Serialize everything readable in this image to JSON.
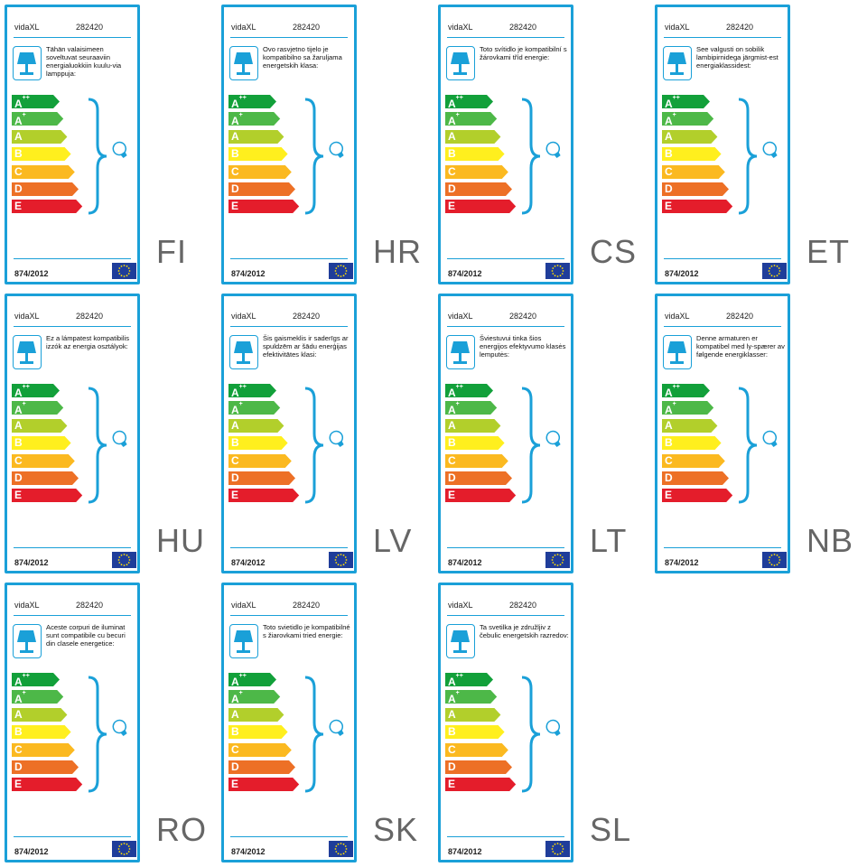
{
  "brand": "vidaXL",
  "code": "282420",
  "regulation": "874/2012",
  "classes": [
    {
      "letter": "A",
      "sup": "++",
      "color": "#12a03a"
    },
    {
      "letter": "A",
      "sup": "+",
      "color": "#4db848"
    },
    {
      "letter": "A",
      "sup": "",
      "color": "#b2cf2b"
    },
    {
      "letter": "B",
      "sup": "",
      "color": "#ffef1e"
    },
    {
      "letter": "C",
      "sup": "",
      "color": "#fbb920"
    },
    {
      "letter": "D",
      "sup": "",
      "color": "#ed7026"
    },
    {
      "letter": "E",
      "sup": "",
      "color": "#e41d2b"
    }
  ],
  "accent_color": "#1aa0d8",
  "labels": [
    {
      "lang": "FI",
      "text": "Tähän valaisimeen soveltuvat seuraaviin energialuokkiin kuulu-via lamppuja:"
    },
    {
      "lang": "HR",
      "text": "Ovo rasvjetno tijelo je kompatibilno sa žaruljama energetskih klasa:"
    },
    {
      "lang": "CS",
      "text": "Toto svítidlo je kompatibilní s žárovkami tříd energie:"
    },
    {
      "lang": "ET",
      "text": "See valgusti on sobilik lambipirnidega järgmist-est energiaklassidest:"
    },
    {
      "lang": "HU",
      "text": "Ez a lámpatest kompatibilis izzók az energia osztályok:"
    },
    {
      "lang": "LV",
      "text": "Šis gaismeklis ir saderīgs ar spuldzēm ar šādu enerģijas efektivitātes klasi:"
    },
    {
      "lang": "LT",
      "text": "Šviestuvui tinka šios energijos efektyvumo klasės lemputės:"
    },
    {
      "lang": "NB",
      "text": "Denne armaturen er kompatibel med ly-spærer av følgende energiklasser:"
    },
    {
      "lang": "RO",
      "text": "Aceste corpuri de iluminat sunt compatibile cu becuri din clasele energetice:"
    },
    {
      "lang": "SK",
      "text": "Toto svietidlo je kompatibilné s žiarovkami tried energie:"
    },
    {
      "lang": "SL",
      "text": "Ta svetilka je združljiv z čebulic energetskih razredov:"
    }
  ]
}
